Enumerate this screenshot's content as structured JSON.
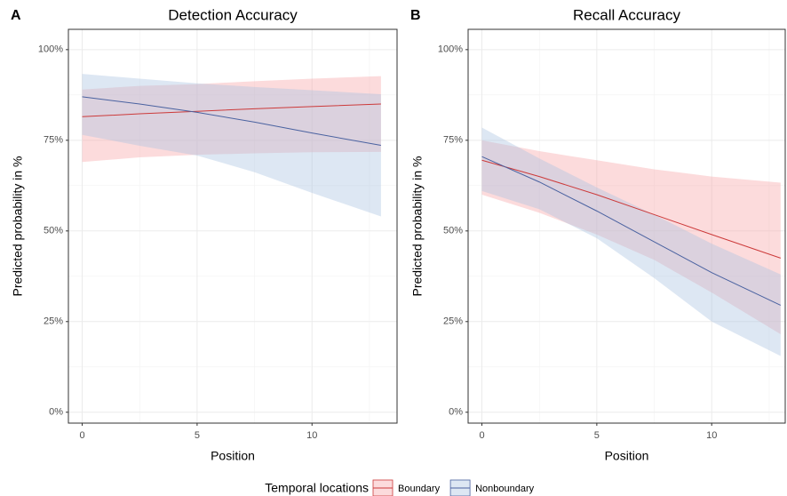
{
  "chart_data": [
    {
      "type": "ribbon-line",
      "tag": "A",
      "title": "Detection Accuracy",
      "x_label": "Position",
      "y_label": "Predicted probability in %",
      "x": [
        0,
        2.5,
        5,
        7.5,
        10,
        13
      ],
      "xlim": [
        -0.6,
        13.7
      ],
      "xticks": [
        0,
        5,
        10
      ],
      "ylim": [
        -3,
        105.6
      ],
      "yticks": [
        {
          "value": 0,
          "label": "0%"
        },
        {
          "value": 25,
          "label": "25%"
        },
        {
          "value": 50,
          "label": "50%"
        },
        {
          "value": 75,
          "label": "75%"
        },
        {
          "value": 100,
          "label": "100%"
        }
      ],
      "grid": true,
      "series": [
        {
          "name": "Boundary",
          "color": "#cc3a3a",
          "fill": "#f8a5a8",
          "values": [
            81.5,
            82.3,
            83,
            83.7,
            84.3,
            85
          ],
          "upper": [
            89,
            90,
            90.5,
            91.3,
            92,
            92.7
          ],
          "lower": [
            69,
            70.3,
            71,
            71.4,
            71.7,
            71.8
          ]
        },
        {
          "name": "Nonboundary",
          "color": "#4a62a0",
          "fill": "#a9c4e2",
          "values": [
            87,
            85,
            82.7,
            80,
            77,
            73.6
          ],
          "upper": [
            93.3,
            92,
            90.7,
            89.7,
            88.8,
            87.7
          ],
          "lower": [
            76.5,
            73.5,
            70.8,
            66.2,
            60.5,
            54
          ]
        }
      ]
    },
    {
      "type": "ribbon-line",
      "tag": "B",
      "title": "Recall Accuracy",
      "x_label": "Position",
      "y_label": "Predicted probability in %",
      "x": [
        0,
        2.5,
        5,
        7.5,
        10,
        13
      ],
      "xlim": [
        -0.6,
        13.2
      ],
      "xticks": [
        0,
        5,
        10
      ],
      "ylim": [
        -3,
        105.6
      ],
      "yticks": [
        {
          "value": 0,
          "label": "0%"
        },
        {
          "value": 25,
          "label": "25%"
        },
        {
          "value": 50,
          "label": "50%"
        },
        {
          "value": 75,
          "label": "75%"
        },
        {
          "value": 100,
          "label": "100%"
        }
      ],
      "grid": true,
      "series": [
        {
          "name": "Boundary",
          "color": "#cc3a3a",
          "fill": "#f8a5a8",
          "values": [
            69.5,
            65,
            60,
            54.5,
            49,
            42.5
          ],
          "upper": [
            75,
            72,
            69.5,
            67,
            65,
            63.3
          ],
          "lower": [
            60,
            55,
            49,
            42,
            33,
            21.5
          ]
        },
        {
          "name": "Nonboundary",
          "color": "#4a62a0",
          "fill": "#a9c4e2",
          "values": [
            70.5,
            63.5,
            55.5,
            47,
            38.5,
            29.5
          ],
          "upper": [
            78.5,
            70,
            62,
            54.5,
            46.5,
            38
          ],
          "lower": [
            61,
            56,
            48,
            37,
            25,
            15.5
          ]
        }
      ]
    }
  ],
  "legend_title": "Temporal locations"
}
